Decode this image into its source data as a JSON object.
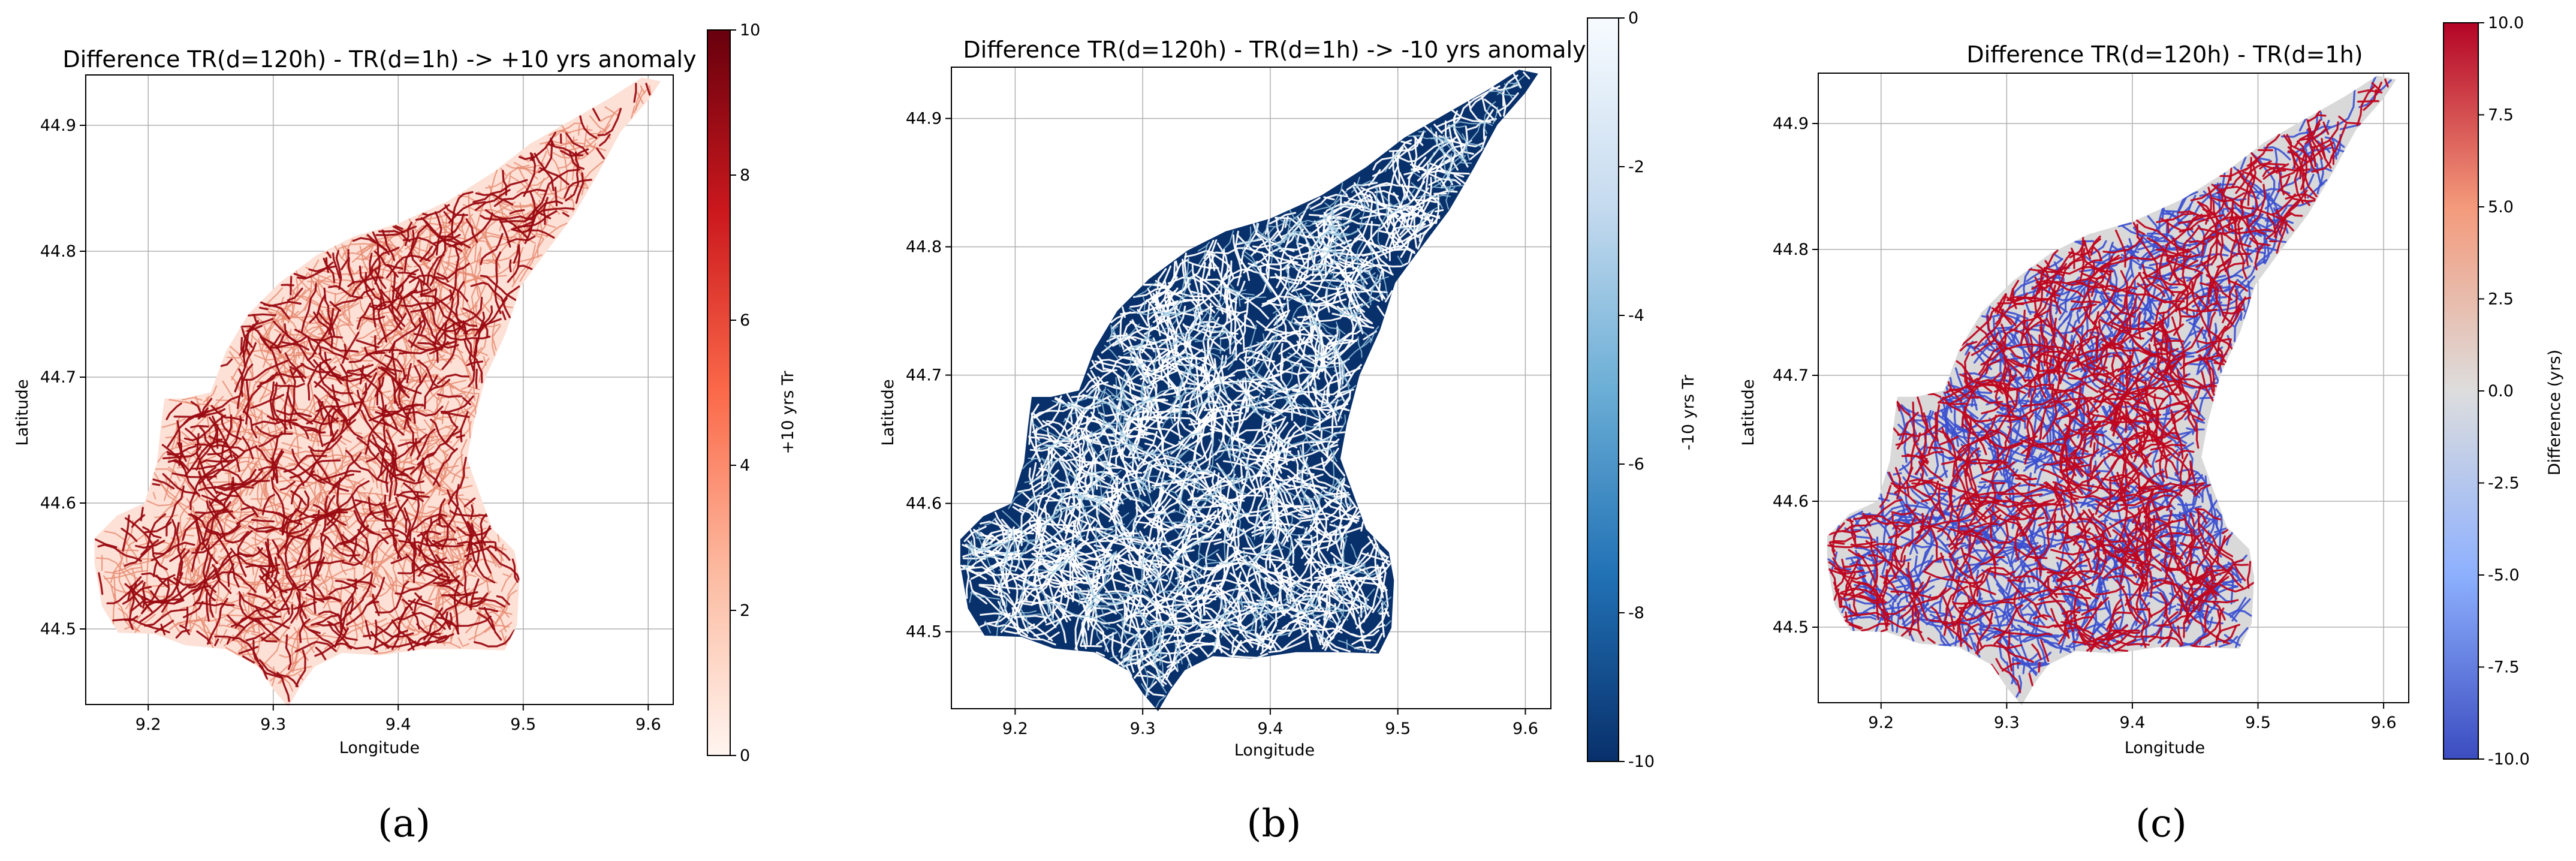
{
  "panels": [
    {
      "id": "a",
      "caption": "(a)",
      "chart_data": {
        "type": "heatmap",
        "title": "Difference TR(d=120h) - TR(d=1h) -> +10 yrs anomaly",
        "xlabel": "Longitude",
        "ylabel": "Latitude",
        "xlim": [
          9.15,
          9.62
        ],
        "ylim": [
          44.44,
          44.94
        ],
        "xticks": [
          9.2,
          9.3,
          9.4,
          9.5,
          9.6
        ],
        "yticks": [
          44.5,
          44.6,
          44.7,
          44.8,
          44.9
        ],
        "grid": true,
        "colorbar": {
          "label": "+10 yrs Tr",
          "min": 0,
          "max": 10,
          "ticks": [
            0,
            2,
            4,
            6,
            8,
            10
          ],
          "colormap": "Reds"
        }
      }
    },
    {
      "id": "b",
      "caption": "(b)",
      "chart_data": {
        "type": "heatmap",
        "title": "Difference TR(d=120h) - TR(d=1h) -> -10 yrs anomaly",
        "xlabel": "Longitude",
        "ylabel": "Latitude",
        "xlim": [
          9.15,
          9.62
        ],
        "ylim": [
          44.44,
          44.94
        ],
        "xticks": [
          9.2,
          9.3,
          9.4,
          9.5,
          9.6
        ],
        "yticks": [
          44.5,
          44.6,
          44.7,
          44.8,
          44.9
        ],
        "grid": true,
        "colorbar": {
          "label": "-10 yrs Tr",
          "min": -10,
          "max": 0,
          "ticks": [
            0,
            -2,
            -4,
            -6,
            -8,
            -10
          ],
          "colormap": "Blues_r"
        }
      }
    },
    {
      "id": "c",
      "caption": "(c)",
      "chart_data": {
        "type": "heatmap",
        "title": "Difference TR(d=120h) - TR(d=1h)",
        "xlabel": "Longitude",
        "ylabel": "Latitude",
        "xlim": [
          9.15,
          9.62
        ],
        "ylim": [
          44.44,
          44.94
        ],
        "xticks": [
          9.2,
          9.3,
          9.4,
          9.5,
          9.6
        ],
        "yticks": [
          44.5,
          44.6,
          44.7,
          44.8,
          44.9
        ],
        "grid": true,
        "colorbar": {
          "label": "Difference (yrs)",
          "min": -10,
          "max": 10,
          "ticks": [
            10.0,
            7.5,
            5.0,
            2.5,
            0.0,
            -2.5,
            -5.0,
            -7.5,
            -10.0
          ],
          "colormap": "coolwarm"
        }
      }
    }
  ],
  "basin_outline": [
    [
      9.157,
      44.552
    ],
    [
      9.163,
      44.518
    ],
    [
      9.176,
      44.497
    ],
    [
      9.205,
      44.496
    ],
    [
      9.23,
      44.487
    ],
    [
      9.262,
      44.484
    ],
    [
      9.288,
      44.47
    ],
    [
      9.3,
      44.452
    ],
    [
      9.312,
      44.438
    ],
    [
      9.322,
      44.455
    ],
    [
      9.333,
      44.47
    ],
    [
      9.355,
      44.481
    ],
    [
      9.385,
      44.479
    ],
    [
      9.42,
      44.484
    ],
    [
      9.455,
      44.484
    ],
    [
      9.485,
      44.483
    ],
    [
      9.495,
      44.503
    ],
    [
      9.497,
      44.54
    ],
    [
      9.493,
      44.562
    ],
    [
      9.475,
      44.58
    ],
    [
      9.466,
      44.605
    ],
    [
      9.455,
      44.635
    ],
    [
      9.46,
      44.662
    ],
    [
      9.47,
      44.7
    ],
    [
      9.486,
      44.735
    ],
    [
      9.498,
      44.772
    ],
    [
      9.515,
      44.795
    ],
    [
      9.54,
      44.828
    ],
    [
      9.56,
      44.862
    ],
    [
      9.578,
      44.895
    ],
    [
      9.6,
      44.92
    ],
    [
      9.61,
      44.935
    ],
    [
      9.595,
      44.938
    ],
    [
      9.57,
      44.922
    ],
    [
      9.54,
      44.905
    ],
    [
      9.505,
      44.885
    ],
    [
      9.475,
      44.862
    ],
    [
      9.44,
      44.84
    ],
    [
      9.4,
      44.822
    ],
    [
      9.365,
      44.812
    ],
    [
      9.335,
      44.797
    ],
    [
      9.305,
      44.775
    ],
    [
      9.28,
      44.75
    ],
    [
      9.262,
      44.72
    ],
    [
      9.25,
      44.688
    ],
    [
      9.228,
      44.683
    ],
    [
      9.213,
      44.683
    ],
    [
      9.21,
      44.66
    ],
    [
      9.207,
      44.632
    ],
    [
      9.197,
      44.6
    ],
    [
      9.175,
      44.59
    ],
    [
      9.157,
      44.572
    ]
  ]
}
